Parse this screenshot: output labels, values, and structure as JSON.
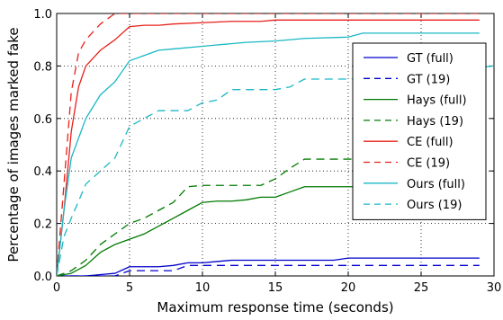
{
  "chart_data": {
    "type": "line",
    "title": "",
    "xlabel": "Maximum response time (seconds)",
    "ylabel": "Percentage of images marked fake",
    "xlim": [
      0,
      30
    ],
    "ylim": [
      0,
      1.0
    ],
    "x_ticks": [
      0,
      5,
      10,
      15,
      20,
      25,
      30
    ],
    "y_ticks": [
      0.0,
      0.2,
      0.4,
      0.6,
      0.8,
      1.0
    ],
    "grid": true,
    "legend_position": "right",
    "series": [
      {
        "name": "GT (full)",
        "color": "#0000cc",
        "dash": "solid",
        "points": [
          [
            0,
            0
          ],
          [
            1,
            0
          ],
          [
            2,
            0
          ],
          [
            3,
            0.005
          ],
          [
            4,
            0.01
          ],
          [
            5,
            0.035
          ],
          [
            6,
            0.035
          ],
          [
            7,
            0.035
          ],
          [
            8,
            0.04
          ],
          [
            9,
            0.05
          ],
          [
            10,
            0.05
          ],
          [
            11,
            0.055
          ],
          [
            12,
            0.06
          ],
          [
            13,
            0.06
          ],
          [
            14,
            0.06
          ],
          [
            15,
            0.06
          ],
          [
            17,
            0.06
          ],
          [
            19,
            0.06
          ],
          [
            20,
            0.068
          ],
          [
            25,
            0.068
          ],
          [
            29,
            0.068
          ]
        ]
      },
      {
        "name": "GT (19)",
        "color": "#0000cc",
        "dash": "dashed",
        "points": [
          [
            0,
            0
          ],
          [
            3,
            0
          ],
          [
            4,
            0
          ],
          [
            5,
            0.02
          ],
          [
            7,
            0.02
          ],
          [
            8,
            0.02
          ],
          [
            9,
            0.04
          ],
          [
            15,
            0.04
          ],
          [
            20,
            0.04
          ],
          [
            29,
            0.04
          ]
        ]
      },
      {
        "name": "Hays (full)",
        "color": "#007a00",
        "dash": "solid",
        "points": [
          [
            0,
            0
          ],
          [
            1,
            0.01
          ],
          [
            2,
            0.04
          ],
          [
            3,
            0.09
          ],
          [
            4,
            0.12
          ],
          [
            5,
            0.14
          ],
          [
            6,
            0.16
          ],
          [
            7,
            0.19
          ],
          [
            8,
            0.22
          ],
          [
            9,
            0.25
          ],
          [
            10,
            0.28
          ],
          [
            11,
            0.285
          ],
          [
            12,
            0.285
          ],
          [
            13,
            0.29
          ],
          [
            14,
            0.3
          ],
          [
            15,
            0.3
          ],
          [
            16,
            0.32
          ],
          [
            17,
            0.34
          ],
          [
            18,
            0.34
          ],
          [
            20,
            0.34
          ],
          [
            25,
            0.34
          ],
          [
            29,
            0.34
          ]
        ]
      },
      {
        "name": "Hays (19)",
        "color": "#007a00",
        "dash": "dashed",
        "points": [
          [
            0,
            0
          ],
          [
            1,
            0.02
          ],
          [
            2,
            0.06
          ],
          [
            3,
            0.12
          ],
          [
            4,
            0.16
          ],
          [
            5,
            0.2
          ],
          [
            6,
            0.22
          ],
          [
            7,
            0.25
          ],
          [
            8,
            0.28
          ],
          [
            9,
            0.34
          ],
          [
            10,
            0.345
          ],
          [
            12,
            0.345
          ],
          [
            14,
            0.345
          ],
          [
            15,
            0.37
          ],
          [
            16,
            0.41
          ],
          [
            17,
            0.445
          ],
          [
            20,
            0.445
          ],
          [
            25,
            0.445
          ],
          [
            29,
            0.445
          ]
        ]
      },
      {
        "name": "CE (full)",
        "color": "#e8201a",
        "dash": "solid",
        "points": [
          [
            0,
            0
          ],
          [
            0.5,
            0.25
          ],
          [
            1,
            0.55
          ],
          [
            1.5,
            0.72
          ],
          [
            2,
            0.8
          ],
          [
            3,
            0.86
          ],
          [
            4,
            0.9
          ],
          [
            5,
            0.95
          ],
          [
            6,
            0.955
          ],
          [
            7,
            0.955
          ],
          [
            8,
            0.96
          ],
          [
            10,
            0.965
          ],
          [
            12,
            0.97
          ],
          [
            14,
            0.97
          ],
          [
            15,
            0.975
          ],
          [
            17,
            0.975
          ],
          [
            20,
            0.975
          ],
          [
            25,
            0.975
          ],
          [
            29,
            0.975
          ]
        ]
      },
      {
        "name": "CE (19)",
        "color": "#e8201a",
        "dash": "dashed",
        "points": [
          [
            0,
            0
          ],
          [
            0.5,
            0.35
          ],
          [
            1,
            0.7
          ],
          [
            1.5,
            0.85
          ],
          [
            2,
            0.9
          ],
          [
            3,
            0.96
          ],
          [
            4,
            1.0
          ],
          [
            5,
            1.0
          ],
          [
            10,
            1.0
          ],
          [
            20,
            1.0
          ],
          [
            29,
            1.0
          ]
        ]
      },
      {
        "name": "Ours (full)",
        "color": "#1ab8c4",
        "dash": "solid",
        "points": [
          [
            0,
            0
          ],
          [
            0.5,
            0.25
          ],
          [
            1,
            0.45
          ],
          [
            2,
            0.6
          ],
          [
            3,
            0.69
          ],
          [
            4,
            0.74
          ],
          [
            5,
            0.82
          ],
          [
            6,
            0.84
          ],
          [
            7,
            0.86
          ],
          [
            8,
            0.865
          ],
          [
            10,
            0.875
          ],
          [
            11,
            0.88
          ],
          [
            13,
            0.89
          ],
          [
            15,
            0.895
          ],
          [
            17,
            0.905
          ],
          [
            20,
            0.91
          ],
          [
            21,
            0.925
          ],
          [
            25,
            0.925
          ],
          [
            29,
            0.925
          ]
        ]
      },
      {
        "name": "Ours (19)",
        "color": "#1ab8c4",
        "dash": "dashed",
        "points": [
          [
            0,
            0
          ],
          [
            0.5,
            0.15
          ],
          [
            1,
            0.22
          ],
          [
            2,
            0.35
          ],
          [
            3,
            0.4
          ],
          [
            4,
            0.45
          ],
          [
            5,
            0.57
          ],
          [
            6,
            0.6
          ],
          [
            7,
            0.63
          ],
          [
            8,
            0.63
          ],
          [
            9,
            0.63
          ],
          [
            10,
            0.66
          ],
          [
            11,
            0.67
          ],
          [
            12,
            0.71
          ],
          [
            15,
            0.71
          ],
          [
            16,
            0.72
          ],
          [
            17,
            0.75
          ],
          [
            20,
            0.75
          ],
          [
            25,
            0.76
          ],
          [
            29,
            0.795
          ],
          [
            30,
            0.8
          ]
        ]
      }
    ]
  }
}
